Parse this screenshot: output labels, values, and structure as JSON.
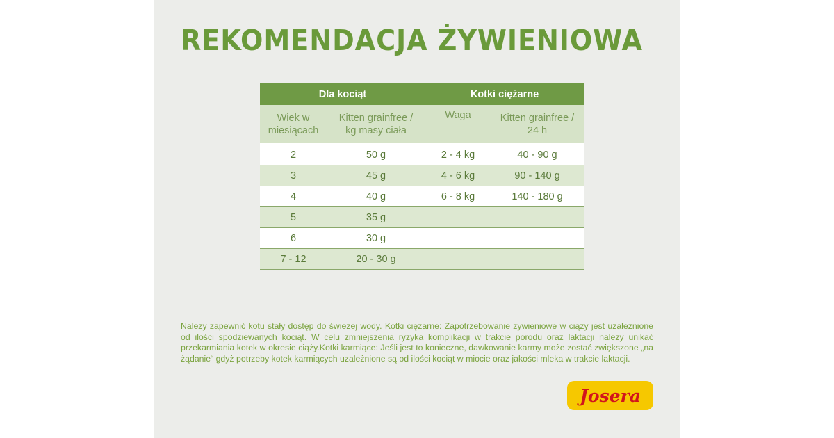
{
  "title": "REKOMENDACJA ŻYWIENIOWA",
  "table": {
    "groups": [
      "Dla kociąt",
      "Kotki ciężarne"
    ],
    "subheaders": [
      [
        "Wiek w",
        "miesiącach"
      ],
      [
        "Kitten grainfree /",
        "kg masy ciała"
      ],
      [
        "Waga",
        ""
      ],
      [
        "Kitten grainfree /",
        "24 h"
      ]
    ],
    "rows": [
      [
        "2",
        "50 g",
        "2 - 4 kg",
        "40 - 90 g"
      ],
      [
        "3",
        "45 g",
        "4 - 6 kg",
        "90 - 140 g"
      ],
      [
        "4",
        "40 g",
        "6 - 8 kg",
        "140 - 180 g"
      ],
      [
        "5",
        "35 g",
        "",
        ""
      ],
      [
        "6",
        "30 g",
        "",
        ""
      ],
      [
        "7 - 12",
        "20 - 30 g",
        "",
        ""
      ]
    ]
  },
  "note": "Należy zapewnić kotu stały dostęp do świeżej wody. Kotki ciężarne: Zapotrzebowanie żywieniowe w ciąży jest uzależnione od ilości spodziewanych kociąt. W celu zmniejszenia ryzyka komplikacji w trakcie porodu oraz laktacji należy unikać przekarmiania kotek w okresie ciąży.Kotki karmiące: Jeśli jest to konieczne, dawkowanie karmy może zostać zwiększone „na żądanie“ gdyż potrzeby kotek karmiących uzależnione są od ilości kociąt w miocie oraz jakości mleka w trakcie laktacji.",
  "logo": "Josera",
  "colors": {
    "accent": "#6f9a45",
    "logo_bg": "#f6c800",
    "logo_text": "#d2141c"
  }
}
